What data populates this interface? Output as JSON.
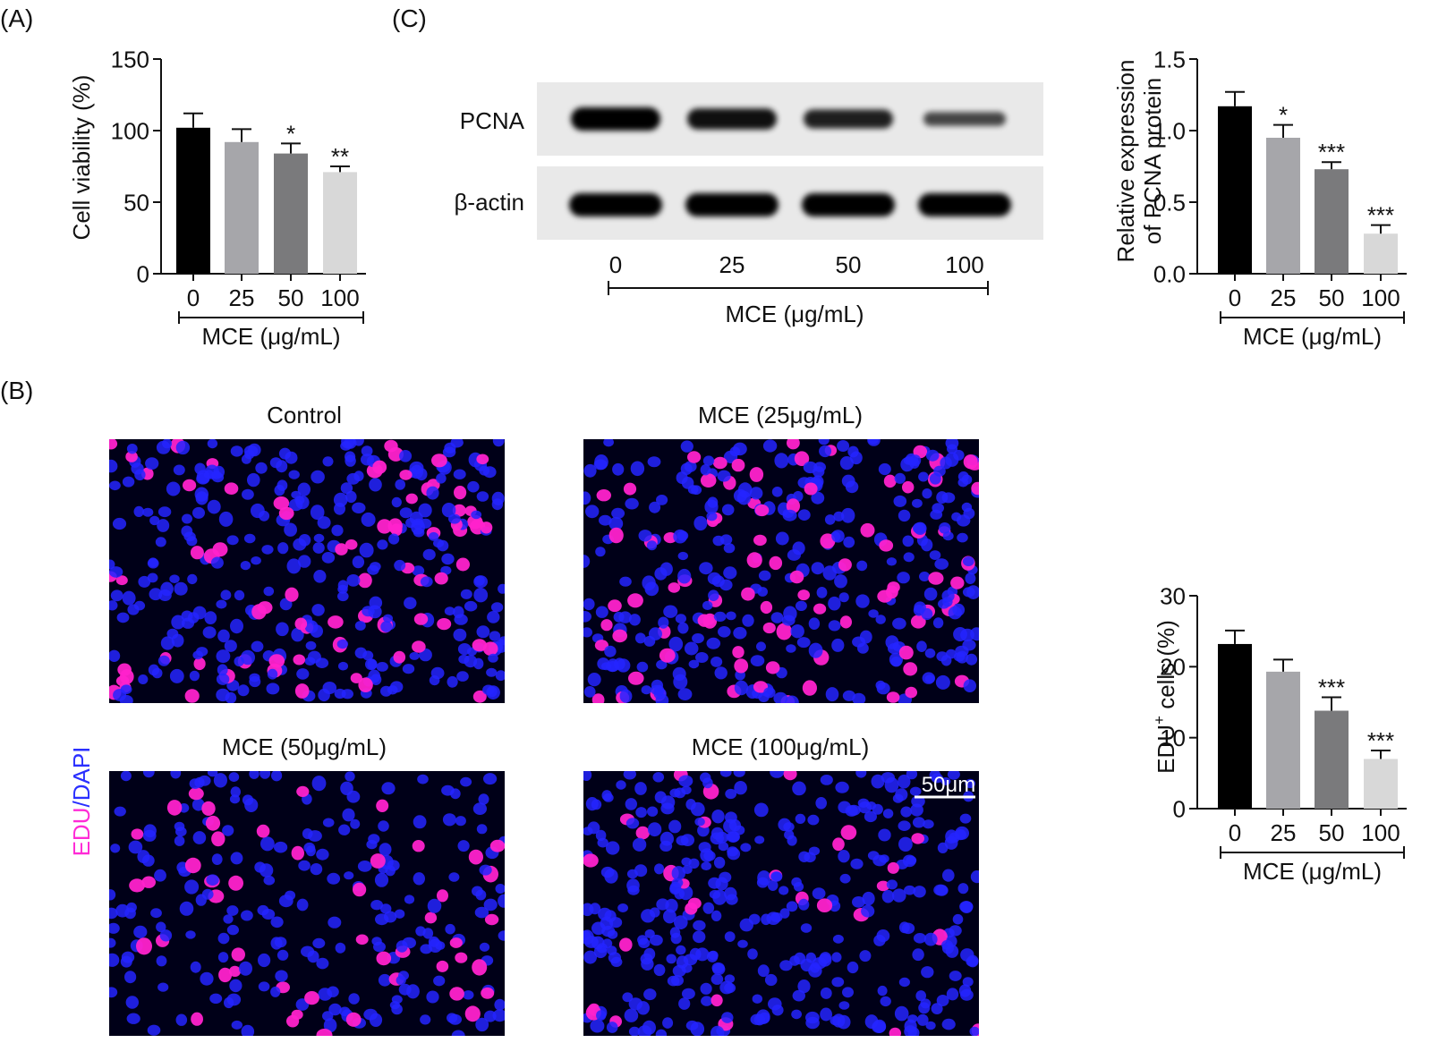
{
  "panels": {
    "a": "(A)",
    "b": "(B)",
    "c": "(C)"
  },
  "colors": {
    "bars": [
      "#000000",
      "#a6a6aa",
      "#7a7a7c",
      "#d8d8d8"
    ],
    "edu": "#ff2bd6",
    "dapi": "#2a2fff",
    "nucleus_blue": "#2424ff",
    "nucleus_magenta": "#ff22cc"
  },
  "blot": {
    "rows": [
      "PCNA",
      "β-actin"
    ],
    "lanes": [
      "0",
      "25",
      "50",
      "100"
    ],
    "xlabel": "MCE (μg/mL)",
    "pcna_intensity": [
      1.0,
      0.85,
      0.7,
      0.35
    ]
  },
  "micro": {
    "titles": [
      "Control",
      "MCE (25μg/mL)",
      "MCE (50μg/mL)",
      "MCE (100μg/mL)"
    ],
    "channel_edu": "EDU",
    "channel_sep": "/",
    "channel_dapi": "DAPI",
    "scale_bar": "50μm",
    "edu_fraction": [
      0.23,
      0.19,
      0.14,
      0.07
    ]
  },
  "chart_data": [
    {
      "id": "A",
      "type": "bar",
      "categories": [
        "0",
        "25",
        "50",
        "100"
      ],
      "values": [
        102,
        92,
        84,
        71
      ],
      "errors": [
        10,
        9,
        7,
        4
      ],
      "significance": [
        "",
        "",
        "*",
        "**"
      ],
      "xlabel": "MCE (μg/mL)",
      "ylabel": "Cell viability (%)",
      "ylim": [
        0,
        150
      ],
      "yticks": [
        "0",
        "50",
        "100",
        "150"
      ]
    },
    {
      "id": "C",
      "type": "bar",
      "categories": [
        "0",
        "25",
        "50",
        "100"
      ],
      "values": [
        1.17,
        0.95,
        0.73,
        0.28
      ],
      "errors": [
        0.1,
        0.09,
        0.05,
        0.06
      ],
      "significance": [
        "",
        "*",
        "***",
        "***"
      ],
      "xlabel": "MCE (μg/mL)",
      "ylabel": "Relative expression of PCNA protein",
      "ylabel_lines": [
        "Relative expression",
        "of PCNA protein"
      ],
      "ylim": [
        0,
        1.5
      ],
      "yticks": [
        "0.0",
        "0.5",
        "1.0",
        "1.5"
      ]
    },
    {
      "id": "B",
      "type": "bar",
      "categories": [
        "0",
        "25",
        "50",
        "100"
      ],
      "values": [
        23.2,
        19.3,
        13.8,
        7.0
      ],
      "errors": [
        1.9,
        1.7,
        1.9,
        1.2
      ],
      "significance": [
        "",
        "",
        "***",
        "***"
      ],
      "xlabel": "MCE (μg/mL)",
      "ylabel": "EDU+ cells (%)",
      "ylabel_main": "EDU",
      "ylabel_sup": "+",
      "ylabel_rest": " cells (%)",
      "ylim": [
        0,
        30
      ],
      "yticks": [
        "0",
        "10",
        "20",
        "30"
      ]
    }
  ]
}
